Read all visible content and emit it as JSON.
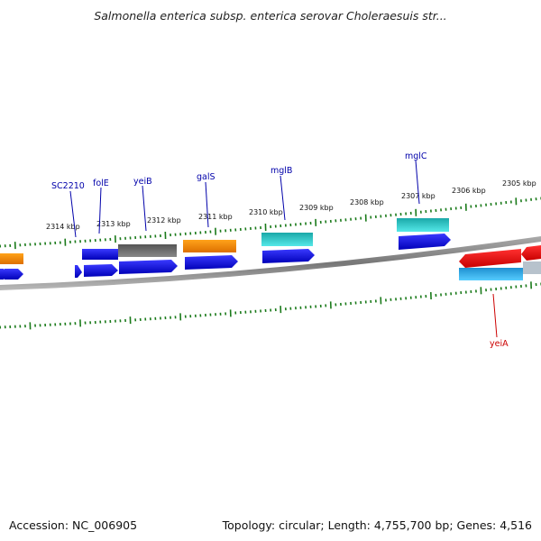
{
  "title": "Salmonella enterica subsp. enterica serovar Choleraesuis str...",
  "footer": {
    "accession": "Accession: NC_006905",
    "summary": "Topology: circular; Length: 4,755,700 bp; Genes: 4,516"
  },
  "kbp_labels": [
    "2314 kbp",
    "2313 kbp",
    "2312 kbp",
    "2311 kbp",
    "2310 kbp",
    "2309 kbp",
    "2308 kbp",
    "2307 kbp",
    "2306 kbp",
    "2305 kbp"
  ],
  "gene_labels": [
    {
      "name": "SC2210",
      "color": "#0000aa"
    },
    {
      "name": "folE",
      "color": "#0000aa"
    },
    {
      "name": "yeiB",
      "color": "#0000aa"
    },
    {
      "name": "galS",
      "color": "#0000aa"
    },
    {
      "name": "mglB",
      "color": "#0000aa"
    },
    {
      "name": "mglC",
      "color": "#0000aa"
    },
    {
      "name": "yeiA",
      "color": "#cc0000"
    }
  ],
  "colors": {
    "cds_blue": "#1010dd",
    "rna_orange": "#ff8800",
    "cyan": "#22cccc",
    "gray": "#666666",
    "red": "#ee1111",
    "light_blue": "#33aaee",
    "tick_green": "#1a7a1a",
    "backbone": "#808080"
  }
}
